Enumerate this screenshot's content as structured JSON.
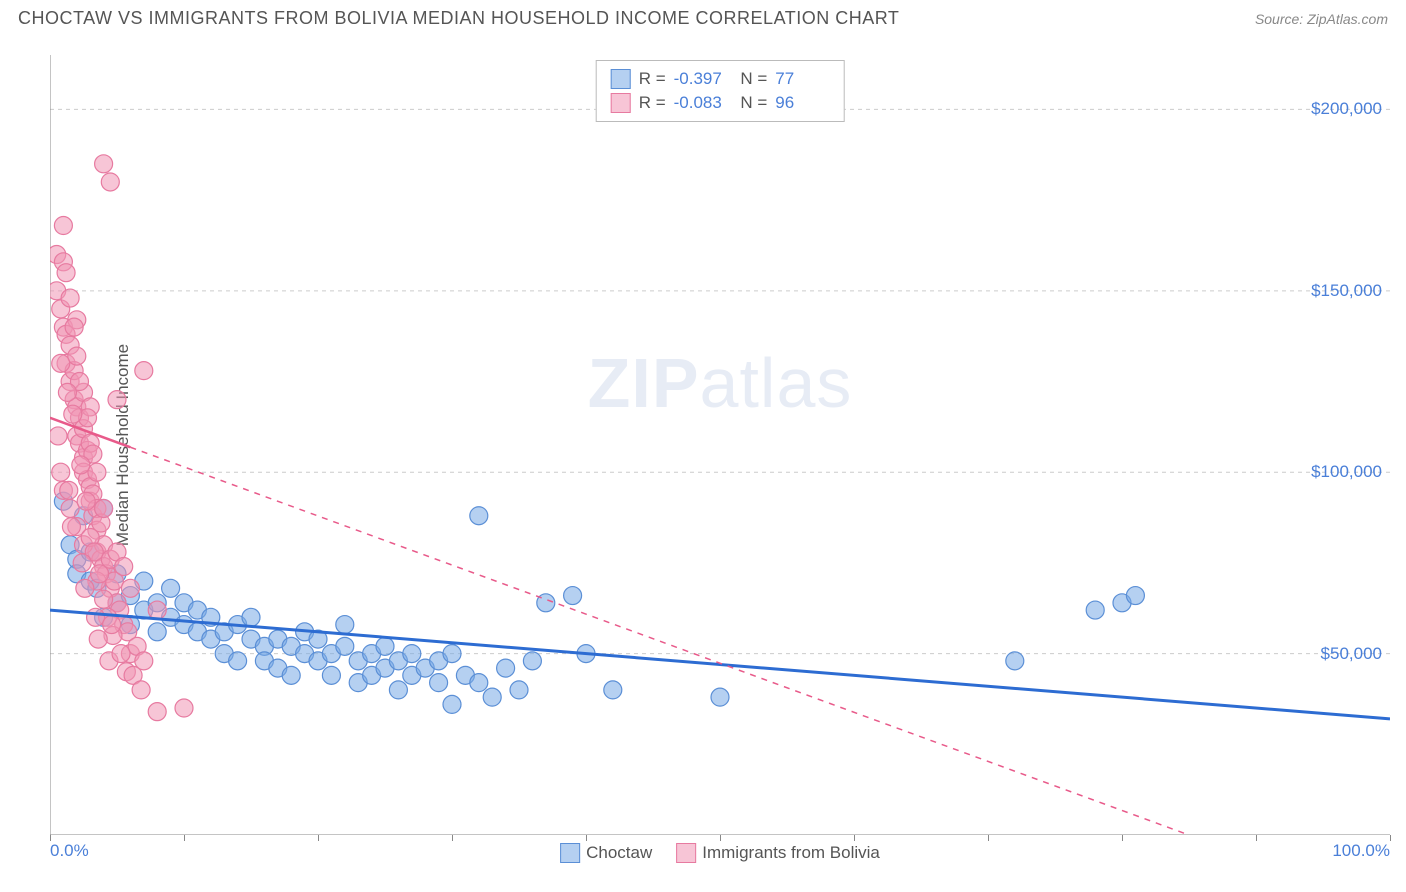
{
  "header": {
    "title": "CHOCTAW VS IMMIGRANTS FROM BOLIVIA MEDIAN HOUSEHOLD INCOME CORRELATION CHART",
    "source": "Source: ZipAtlas.com"
  },
  "ylabel": "Median Household Income",
  "watermark": {
    "bold": "ZIP",
    "rest": "atlas"
  },
  "chart": {
    "type": "scatter",
    "xlim": [
      0,
      100
    ],
    "ylim": [
      0,
      215000
    ],
    "x_unit": "%",
    "background_color": "#ffffff",
    "grid_color": "#cccccc",
    "grid_dash": "4,4",
    "y_gridlines": [
      50000,
      100000,
      150000,
      200000
    ],
    "y_tick_labels": [
      "$50,000",
      "$100,000",
      "$150,000",
      "$200,000"
    ],
    "x_tick_positions": [
      0,
      10,
      20,
      30,
      40,
      50,
      60,
      70,
      80,
      90,
      100
    ],
    "x_tick_labels_shown": {
      "0": "0.0%",
      "100": "100.0%"
    },
    "series": [
      {
        "name": "Choctaw",
        "marker_color_fill": "rgba(120,170,230,0.55)",
        "marker_color_stroke": "#5b8fd6",
        "marker_radius": 9,
        "trend_color": "#2d6cd2",
        "trend_width": 3,
        "trend_dash_after_data": false,
        "trend": {
          "x1": 0,
          "y1": 62000,
          "x2": 100,
          "y2": 32000
        },
        "R": "-0.397",
        "N": "77",
        "points": [
          [
            1,
            92000
          ],
          [
            1.5,
            80000
          ],
          [
            2,
            76000
          ],
          [
            2,
            72000
          ],
          [
            2.5,
            88000
          ],
          [
            3,
            78000
          ],
          [
            3,
            70000
          ],
          [
            3.5,
            68000
          ],
          [
            4,
            90000
          ],
          [
            4,
            60000
          ],
          [
            5,
            64000
          ],
          [
            5,
            72000
          ],
          [
            6,
            66000
          ],
          [
            6,
            58000
          ],
          [
            7,
            62000
          ],
          [
            7,
            70000
          ],
          [
            8,
            64000
          ],
          [
            8,
            56000
          ],
          [
            9,
            60000
          ],
          [
            9,
            68000
          ],
          [
            10,
            58000
          ],
          [
            10,
            64000
          ],
          [
            11,
            56000
          ],
          [
            11,
            62000
          ],
          [
            12,
            60000
          ],
          [
            12,
            54000
          ],
          [
            13,
            56000
          ],
          [
            13,
            50000
          ],
          [
            14,
            58000
          ],
          [
            14,
            48000
          ],
          [
            15,
            54000
          ],
          [
            15,
            60000
          ],
          [
            16,
            52000
          ],
          [
            16,
            48000
          ],
          [
            17,
            54000
          ],
          [
            17,
            46000
          ],
          [
            18,
            52000
          ],
          [
            18,
            44000
          ],
          [
            19,
            50000
          ],
          [
            19,
            56000
          ],
          [
            20,
            48000
          ],
          [
            20,
            54000
          ],
          [
            21,
            50000
          ],
          [
            21,
            44000
          ],
          [
            22,
            52000
          ],
          [
            22,
            58000
          ],
          [
            23,
            48000
          ],
          [
            23,
            42000
          ],
          [
            24,
            50000
          ],
          [
            24,
            44000
          ],
          [
            25,
            46000
          ],
          [
            25,
            52000
          ],
          [
            26,
            48000
          ],
          [
            26,
            40000
          ],
          [
            27,
            44000
          ],
          [
            27,
            50000
          ],
          [
            28,
            46000
          ],
          [
            29,
            42000
          ],
          [
            29,
            48000
          ],
          [
            30,
            50000
          ],
          [
            30,
            36000
          ],
          [
            31,
            44000
          ],
          [
            32,
            42000
          ],
          [
            32,
            88000
          ],
          [
            33,
            38000
          ],
          [
            34,
            46000
          ],
          [
            35,
            40000
          ],
          [
            36,
            48000
          ],
          [
            37,
            64000
          ],
          [
            39,
            66000
          ],
          [
            40,
            50000
          ],
          [
            42,
            40000
          ],
          [
            50,
            38000
          ],
          [
            72,
            48000
          ],
          [
            80,
            64000
          ],
          [
            81,
            66000
          ],
          [
            78,
            62000
          ]
        ]
      },
      {
        "name": "Immigrants from Bolivia",
        "marker_color_fill": "rgba(240,150,180,0.55)",
        "marker_color_stroke": "#e77aa0",
        "marker_radius": 9,
        "trend_color": "#e85a8a",
        "trend_width": 2.5,
        "trend_dash_after_data": true,
        "trend_dash_x": 6,
        "trend": {
          "x1": 0,
          "y1": 115000,
          "x2": 85,
          "y2": 0
        },
        "R": "-0.083",
        "N": "96",
        "points": [
          [
            0.5,
            160000
          ],
          [
            0.5,
            150000
          ],
          [
            0.8,
            145000
          ],
          [
            1,
            140000
          ],
          [
            1,
            168000
          ],
          [
            1,
            158000
          ],
          [
            1.2,
            138000
          ],
          [
            1.2,
            130000
          ],
          [
            1.5,
            148000
          ],
          [
            1.5,
            135000
          ],
          [
            1.5,
            125000
          ],
          [
            1.8,
            128000
          ],
          [
            1.8,
            120000
          ],
          [
            2,
            142000
          ],
          [
            2,
            132000
          ],
          [
            2,
            118000
          ],
          [
            2,
            110000
          ],
          [
            2.2,
            115000
          ],
          [
            2.2,
            108000
          ],
          [
            2.5,
            122000
          ],
          [
            2.5,
            112000
          ],
          [
            2.5,
            104000
          ],
          [
            2.5,
            100000
          ],
          [
            2.8,
            106000
          ],
          [
            2.8,
            98000
          ],
          [
            3,
            118000
          ],
          [
            3,
            108000
          ],
          [
            3,
            96000
          ],
          [
            3,
            92000
          ],
          [
            3.2,
            94000
          ],
          [
            3.2,
            88000
          ],
          [
            3.5,
            100000
          ],
          [
            3.5,
            90000
          ],
          [
            3.5,
            84000
          ],
          [
            3.5,
            78000
          ],
          [
            3.8,
            86000
          ],
          [
            3.8,
            76000
          ],
          [
            4,
            90000
          ],
          [
            4,
            80000
          ],
          [
            4,
            74000
          ],
          [
            4,
            185000
          ],
          [
            4.2,
            72000
          ],
          [
            4.5,
            180000
          ],
          [
            4.5,
            76000
          ],
          [
            4.5,
            68000
          ],
          [
            4.8,
            70000
          ],
          [
            5,
            120000
          ],
          [
            5,
            78000
          ],
          [
            5,
            64000
          ],
          [
            5.2,
            62000
          ],
          [
            5.5,
            74000
          ],
          [
            5.5,
            58000
          ],
          [
            5.8,
            56000
          ],
          [
            6,
            68000
          ],
          [
            6,
            50000
          ],
          [
            6.5,
            52000
          ],
          [
            7,
            128000
          ],
          [
            7,
            48000
          ],
          [
            1,
            95000
          ],
          [
            1.5,
            90000
          ],
          [
            2,
            85000
          ],
          [
            2.5,
            80000
          ],
          [
            3,
            82000
          ],
          [
            3.5,
            70000
          ],
          [
            4,
            65000
          ],
          [
            1.2,
            155000
          ],
          [
            1.8,
            140000
          ],
          [
            2.2,
            125000
          ],
          [
            2.8,
            115000
          ],
          [
            3.2,
            105000
          ],
          [
            0.8,
            130000
          ],
          [
            1.3,
            122000
          ],
          [
            1.7,
            116000
          ],
          [
            2.3,
            102000
          ],
          [
            2.7,
            92000
          ],
          [
            3.3,
            78000
          ],
          [
            3.7,
            72000
          ],
          [
            4.3,
            60000
          ],
          [
            4.7,
            55000
          ],
          [
            10,
            35000
          ],
          [
            0.6,
            110000
          ],
          [
            0.8,
            100000
          ],
          [
            1.4,
            95000
          ],
          [
            1.6,
            85000
          ],
          [
            2.4,
            75000
          ],
          [
            2.6,
            68000
          ],
          [
            3.4,
            60000
          ],
          [
            3.6,
            54000
          ],
          [
            4.4,
            48000
          ],
          [
            4.6,
            58000
          ],
          [
            5.3,
            50000
          ],
          [
            5.7,
            45000
          ],
          [
            6.2,
            44000
          ],
          [
            6.8,
            40000
          ],
          [
            8,
            62000
          ],
          [
            8,
            34000
          ]
        ]
      }
    ]
  },
  "legend": {
    "series1_label": "Choctaw",
    "series2_label": "Immigrants from Bolivia"
  }
}
